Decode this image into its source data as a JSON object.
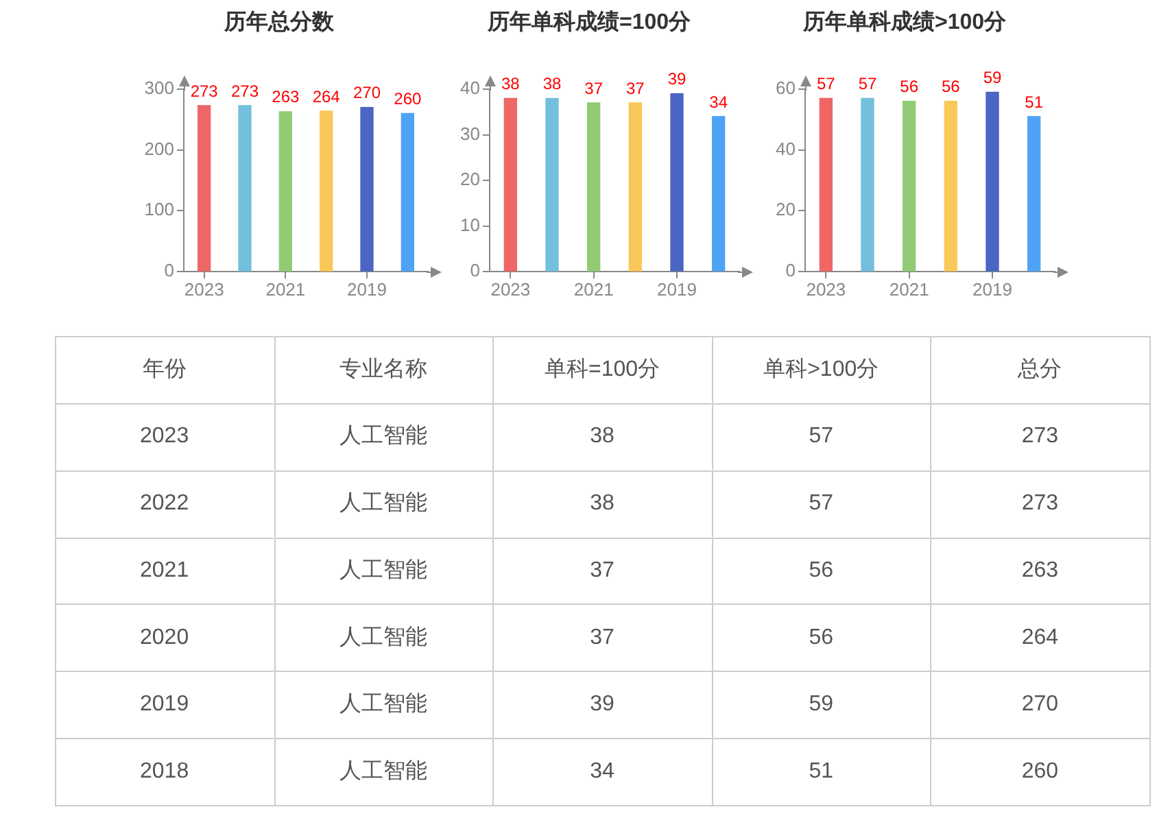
{
  "chart_data": [
    {
      "type": "bar",
      "title": "历年总分数",
      "categories": [
        "2023",
        null,
        "2021",
        null,
        "2019",
        null
      ],
      "values": [
        273,
        273,
        263,
        264,
        270,
        260
      ],
      "colors": [
        "#ee6666",
        "#73c0de",
        "#91cc75",
        "#fac858",
        "#4b65c4",
        "#4fa3f7"
      ],
      "ylim": [
        0,
        300
      ],
      "yticks": [
        0,
        100,
        200,
        300
      ],
      "data_labels": true
    },
    {
      "type": "bar",
      "title": "历年单科成绩=100分",
      "categories": [
        "2023",
        null,
        "2021",
        null,
        "2019",
        null
      ],
      "values": [
        38,
        38,
        37,
        37,
        39,
        34
      ],
      "colors": [
        "#ee6666",
        "#73c0de",
        "#91cc75",
        "#fac858",
        "#4b65c4",
        "#4fa3f7"
      ],
      "ylim": [
        0,
        40
      ],
      "yticks": [
        0,
        10,
        20,
        30,
        40
      ],
      "data_labels": true
    },
    {
      "type": "bar",
      "title": "历年单科成绩>100分",
      "categories": [
        "2023",
        null,
        "2021",
        null,
        "2019",
        null
      ],
      "values": [
        57,
        57,
        56,
        56,
        59,
        51
      ],
      "colors": [
        "#ee6666",
        "#73c0de",
        "#91cc75",
        "#fac858",
        "#4b65c4",
        "#4fa3f7"
      ],
      "ylim": [
        0,
        60
      ],
      "yticks": [
        0,
        20,
        40,
        60
      ],
      "data_labels": true
    },
    {
      "type": "heatmap",
      "ylabel": "年份",
      "categories": [
        "专业名称",
        "单科=100分",
        "单科>100分",
        "总分"
      ],
      "y_categories": [
        "2023",
        "2022",
        "2021",
        "2020",
        "2019",
        "2018"
      ],
      "cells": [
        [
          null,
          38,
          57,
          273
        ],
        [
          null,
          38,
          57,
          273
        ],
        [
          null,
          37,
          56,
          263
        ],
        [
          null,
          37,
          56,
          264
        ],
        [
          null,
          39,
          59,
          270
        ],
        [
          null,
          34,
          51,
          260
        ]
      ],
      "data_labels": true,
      "annotations": [
        "人工智能",
        "人工智能",
        "人工智能",
        "人工智能",
        "人工智能",
        "人工智能"
      ]
    }
  ]
}
